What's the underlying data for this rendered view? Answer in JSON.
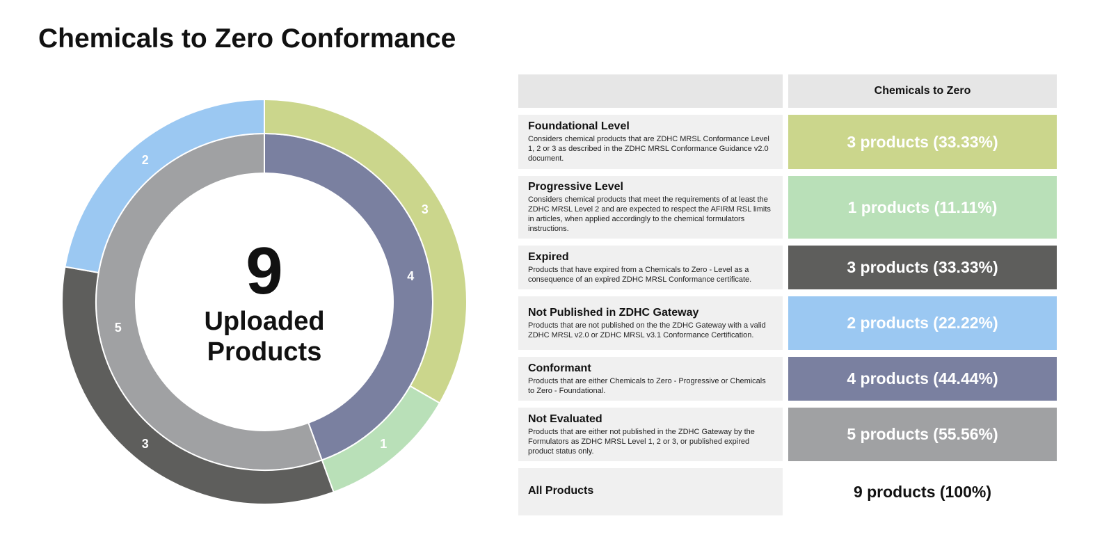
{
  "title": "Chemicals to Zero Conformance",
  "center": {
    "total": "9",
    "label_line1": "Uploaded",
    "label_line2": "Products"
  },
  "table": {
    "header": {
      "left": "",
      "right": "Chemicals to Zero"
    },
    "rows": [
      {
        "title": "Foundational Level",
        "description": "Considers chemical products that are ZDHC MRSL Conformance Level 1, 2 or 3 as described in the ZDHC MRSL Conformance Guidance v2.0 document.",
        "value": "3 products (33.33%)",
        "color": "#cbd68c"
      },
      {
        "title": "Progressive Level",
        "description": "Considers chemical products that meet the requirements of at least the ZDHC MRSL Level 2 and are expected to respect the AFIRM RSL limits in articles, when applied accordingly to the chemical formulators instructions.",
        "value": "1 products (11.11%)",
        "color": "#b9e0b8"
      },
      {
        "title": "Expired",
        "description": "Products that have expired from a Chemicals to Zero - Level as a consequence of an expired ZDHC MRSL Conformance certificate.",
        "value": "3 products (33.33%)",
        "color": "#5e5e5c"
      },
      {
        "title": "Not Published in ZDHC Gateway",
        "description": "Products that are not published on the the ZDHC Gateway with a valid ZDHC MRSL v2.0 or ZDHC MRSL v3.1 Conformance Certification.",
        "value": "2 products (22.22%)",
        "color": "#9bc8f2"
      },
      {
        "title": "Conformant",
        "description": "Products that are either Chemicals to Zero - Progressive or Chemicals to Zero - Foundational.",
        "value": "4 products (44.44%)",
        "color": "#7a80a0"
      },
      {
        "title": "Not Evaluated",
        "description": "Products that are either not published in the ZDHC Gateway by the Formulators as ZDHC MRSL Level 1, 2 or 3, or published expired product status only.",
        "value": "5 products (55.56%)",
        "color": "#a0a1a3"
      }
    ],
    "total": {
      "title": "All Products",
      "value": "9 products (100%)"
    }
  },
  "chart_data": {
    "type": "pie",
    "donut": true,
    "rings": [
      {
        "ring": "inner",
        "segments": [
          {
            "label": "Conformant",
            "value": 4,
            "color": "#7a80a0"
          },
          {
            "label": "Not Evaluated",
            "value": 5,
            "color": "#a0a1a3"
          }
        ]
      },
      {
        "ring": "outer",
        "segments": [
          {
            "label": "Foundational Level",
            "value": 3,
            "color": "#cbd68c"
          },
          {
            "label": "Progressive Level",
            "value": 1,
            "color": "#b9e0b8"
          },
          {
            "label": "Expired",
            "value": 3,
            "color": "#5e5e5c"
          },
          {
            "label": "Not Published in ZDHC Gateway",
            "value": 2,
            "color": "#9bc8f2"
          }
        ]
      }
    ],
    "total": 9
  }
}
